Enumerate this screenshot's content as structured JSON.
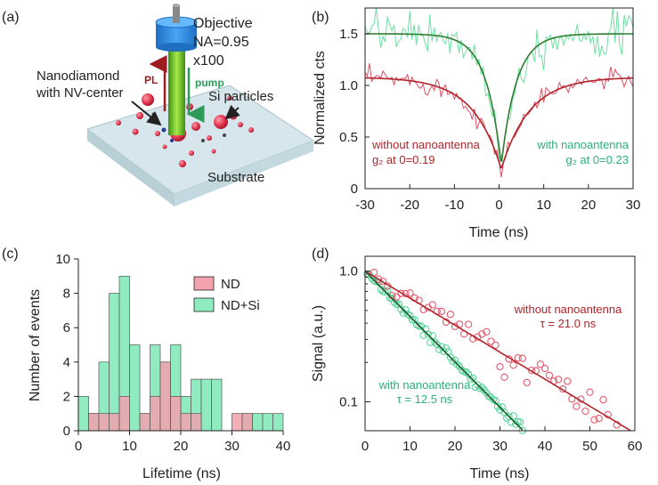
{
  "figure": {
    "colors": {
      "red": "#b0242a",
      "green": "#2bb07a",
      "green_dark": "#2e7d32",
      "pink_fill": "#f2a1ad",
      "green_fill": "#90ecc0"
    },
    "panel_a": {
      "tag": "(a)",
      "objective": "Objective",
      "na": "NA=0.95",
      "mag": "x100",
      "nanodiamond": "Nanodiamond",
      "nv_center": "with NV-center",
      "si_particles": "Si particles",
      "pl": "PL",
      "pump": "pump",
      "substrate": "Substrate"
    }
  },
  "chart_data": [
    {
      "id": "b",
      "tag": "(b)",
      "type": "line",
      "xlabel": "Time (ns)",
      "ylabel": "Normalized cts",
      "xlim": [
        -30,
        30
      ],
      "ylim": [
        0,
        1.75
      ],
      "xticks": [
        -30,
        -20,
        -10,
        0,
        10,
        20,
        30
      ],
      "yticks": [
        0,
        0.5,
        1.0,
        1.5
      ],
      "ytick_labels": [
        "0",
        "0.5",
        "1.0",
        "1.5"
      ],
      "series": [
        {
          "name": "without nanoantenna",
          "color": "#b0242a",
          "raw_color": "#e24d61",
          "g2_zero": 0.19,
          "amplitude": 1.08,
          "tau": 6.3,
          "noise": 0.05
        },
        {
          "name": "with nanoantenna",
          "color": "#2e7d32",
          "raw_color": "#6fe0a3",
          "g2_zero": 0.23,
          "amplitude": 1.5,
          "tau": 3.4,
          "noise": 0.1
        }
      ],
      "annotations": {
        "red_title": "without nanoantenna",
        "red_label": "g₂ at 0=0.19",
        "green_title": "with nanoantenna",
        "green_label": "g₂ at 0=0.23"
      }
    },
    {
      "id": "c",
      "tag": "(c)",
      "type": "bar",
      "xlabel": "Lifetime (ns)",
      "ylabel": "Number of events",
      "xlim": [
        0,
        40
      ],
      "ylim": [
        0,
        10
      ],
      "xticks": [
        0,
        10,
        20,
        30,
        40
      ],
      "yticks": [
        0,
        2,
        4,
        6,
        8,
        10
      ],
      "bin_edges": [
        0,
        2,
        4,
        6,
        8,
        10,
        12,
        14,
        16,
        18,
        20,
        22,
        24,
        26,
        28,
        30,
        32,
        34,
        36,
        38,
        40
      ],
      "series": [
        {
          "name": "ND+Si",
          "counts": [
            2,
            1,
            4,
            8,
            9,
            5,
            1,
            5,
            4,
            5,
            2,
            3,
            3,
            3,
            0,
            0,
            1,
            1,
            1,
            1
          ]
        },
        {
          "name": "ND",
          "counts": [
            0,
            1,
            1,
            1,
            2,
            0,
            1,
            2,
            4,
            2,
            1,
            1,
            0,
            0,
            0,
            1,
            1,
            0,
            0,
            0
          ]
        }
      ],
      "legend": [
        "ND",
        "ND+Si"
      ]
    },
    {
      "id": "d",
      "tag": "(d)",
      "type": "scatter",
      "xlabel": "Time (ns)",
      "ylabel": "Signal (a.u.)",
      "xlim": [
        0,
        60
      ],
      "ylim": [
        0.06,
        1.3
      ],
      "yscale": "log",
      "xticks": [
        0,
        10,
        20,
        30,
        40,
        50,
        60
      ],
      "yticks": [
        0.1,
        1.0
      ],
      "ytick_labels": [
        "0.1",
        "1.0"
      ],
      "series": [
        {
          "name": "without nanoantenna",
          "tau": 21.0,
          "x_start": 2,
          "x_end": 59,
          "step": 1,
          "noise": 0.15
        },
        {
          "name": "with nanoantenna",
          "tau": 12.5,
          "x_start": 0.5,
          "x_end": 50,
          "step": 0.5,
          "noise": 0.07
        }
      ],
      "annotations": {
        "red_title": "without nanoantenna",
        "red_tau": "τ = 21.0 ns",
        "green_title": "with nanoantenna",
        "green_tau": "τ = 12.5 ns"
      }
    }
  ]
}
